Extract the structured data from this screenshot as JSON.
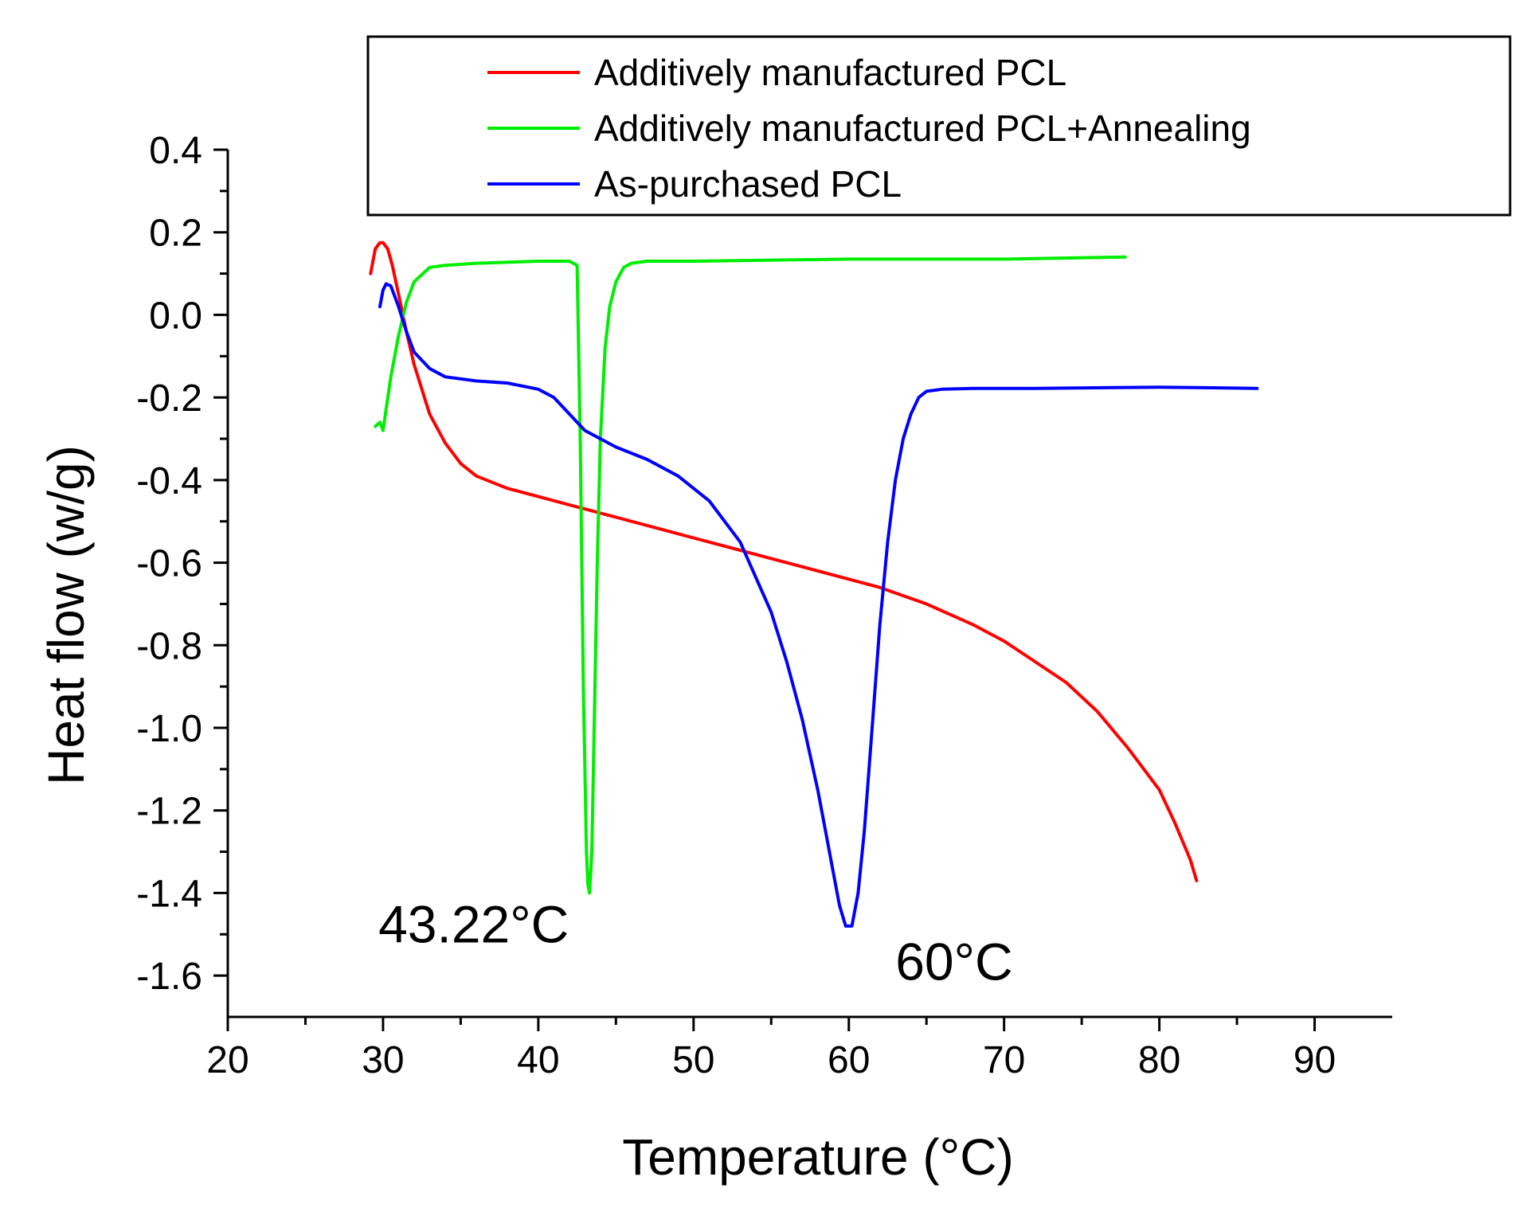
{
  "chart_data": {
    "type": "line",
    "title": "",
    "xlabel": "Temperature (°C)",
    "ylabel": "Heat flow (w/g)",
    "xlim": [
      20,
      95
    ],
    "ylim": [
      -1.7,
      0.4
    ],
    "xticks": [
      20,
      30,
      40,
      50,
      60,
      70,
      80,
      90
    ],
    "xtick_labels": [
      "20",
      "30",
      "40",
      "50",
      "60",
      "70",
      "80",
      "90"
    ],
    "yticks": [
      0.4,
      0.2,
      0.0,
      -0.2,
      -0.4,
      -0.6,
      -0.8,
      -1.0,
      -1.2,
      -1.4,
      -1.6
    ],
    "ytick_labels": [
      "0.4",
      "0.2",
      "0.0",
      "-0.2",
      "-0.4",
      "-0.6",
      "-0.8",
      "-1.0",
      "-1.2",
      "-1.4",
      "-1.6"
    ],
    "grid": false,
    "legend_position": "top-right",
    "series": [
      {
        "name": "Additively manufactured PCL",
        "color": "#ff0000",
        "x": [
          29.2,
          29.5,
          29.8,
          30.0,
          30.3,
          30.6,
          31.0,
          31.5,
          32.0,
          33.0,
          34.0,
          35.0,
          36.0,
          38.0,
          40.0,
          42.0,
          45.0,
          48.0,
          50.0,
          52.0,
          55.0,
          58.0,
          60.0,
          62.0,
          65.0,
          68.0,
          70.0,
          72.0,
          74.0,
          76.0,
          78.0,
          80.0,
          81.0,
          82.0,
          82.4
        ],
        "y": [
          0.1,
          0.16,
          0.175,
          0.175,
          0.16,
          0.12,
          0.05,
          -0.04,
          -0.12,
          -0.24,
          -0.31,
          -0.36,
          -0.39,
          -0.42,
          -0.44,
          -0.46,
          -0.49,
          -0.52,
          -0.54,
          -0.56,
          -0.59,
          -0.62,
          -0.64,
          -0.66,
          -0.7,
          -0.75,
          -0.79,
          -0.84,
          -0.89,
          -0.96,
          -1.05,
          -1.15,
          -1.23,
          -1.32,
          -1.37
        ]
      },
      {
        "name": "Additively manufactured PCL+Annealing",
        "color": "#00ee00",
        "x": [
          29.5,
          29.8,
          30.0,
          30.5,
          31.0,
          31.5,
          32.0,
          33.0,
          34.0,
          36.0,
          40.0,
          42.0,
          42.5,
          42.7,
          42.9,
          43.1,
          43.2,
          43.3,
          43.45,
          43.6,
          43.8,
          44.0,
          44.3,
          44.6,
          45.0,
          45.5,
          46.0,
          47.0,
          50.0,
          60.0,
          70.0,
          77.8
        ],
        "y": [
          -0.27,
          -0.26,
          -0.28,
          -0.15,
          -0.05,
          0.03,
          0.08,
          0.115,
          0.12,
          0.125,
          0.13,
          0.13,
          0.12,
          -0.3,
          -0.9,
          -1.3,
          -1.38,
          -1.4,
          -1.3,
          -1.0,
          -0.6,
          -0.3,
          -0.08,
          0.02,
          0.08,
          0.115,
          0.125,
          0.13,
          0.13,
          0.135,
          0.135,
          0.14
        ]
      },
      {
        "name": "As-purchased PCL",
        "color": "#0000ff",
        "x": [
          29.8,
          30.0,
          30.2,
          30.5,
          31.0,
          31.5,
          32.0,
          33.0,
          34.0,
          36.0,
          38.0,
          40.0,
          41.0,
          42.0,
          43.0,
          44.0,
          45.0,
          47.0,
          49.0,
          51.0,
          53.0,
          55.0,
          56.0,
          57.0,
          58.0,
          58.5,
          59.0,
          59.4,
          59.8,
          60.2,
          60.6,
          61.0,
          61.5,
          62.0,
          62.5,
          63.0,
          63.5,
          64.0,
          64.5,
          65.0,
          66.0,
          68.0,
          72.0,
          80.0,
          86.3
        ],
        "y": [
          0.02,
          0.06,
          0.075,
          0.07,
          0.02,
          -0.04,
          -0.09,
          -0.13,
          -0.15,
          -0.16,
          -0.165,
          -0.18,
          -0.2,
          -0.24,
          -0.28,
          -0.3,
          -0.32,
          -0.35,
          -0.39,
          -0.45,
          -0.55,
          -0.72,
          -0.84,
          -0.98,
          -1.15,
          -1.25,
          -1.35,
          -1.43,
          -1.48,
          -1.48,
          -1.4,
          -1.25,
          -1.0,
          -0.75,
          -0.55,
          -0.4,
          -0.3,
          -0.24,
          -0.2,
          -0.185,
          -0.18,
          -0.178,
          -0.178,
          -0.175,
          -0.178
        ]
      }
    ],
    "annotations": [
      {
        "text": "43.22°C",
        "x": 29.7,
        "y": -1.52
      },
      {
        "text": "60°C",
        "x": 63.0,
        "y": -1.61
      }
    ]
  }
}
